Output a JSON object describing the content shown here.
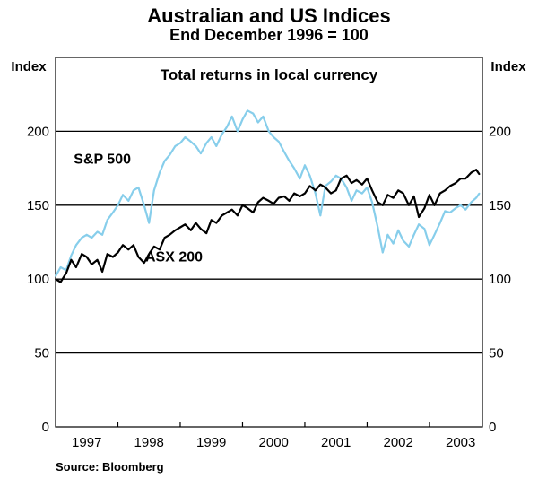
{
  "chart_data": {
    "type": "line",
    "title": "Australian and US Indices",
    "subtitle": "End December 1996 = 100",
    "panel_title": "Total returns in local currency",
    "ylabel_left": "Index",
    "ylabel_right": "Index",
    "ylim": [
      0,
      250
    ],
    "xlim": [
      1997.0,
      2003.85
    ],
    "y_ticks": [
      0,
      50,
      100,
      150,
      200
    ],
    "y_tick_labels": [
      "0",
      "50",
      "100",
      "150",
      "200"
    ],
    "x_tick_labels": [
      "1997",
      "1998",
      "1999",
      "2000",
      "2001",
      "2002",
      "2003"
    ],
    "grid": true,
    "source": "Source: Bloomberg",
    "series": [
      {
        "name": "S&P 500",
        "color": "#87CEEB",
        "x": [
          1997.0,
          1997.08,
          1997.17,
          1997.25,
          1997.33,
          1997.42,
          1997.5,
          1997.58,
          1997.67,
          1997.75,
          1997.83,
          1997.92,
          1998.0,
          1998.08,
          1998.17,
          1998.25,
          1998.33,
          1998.42,
          1998.5,
          1998.58,
          1998.67,
          1998.75,
          1998.83,
          1998.92,
          1999.0,
          1999.08,
          1999.17,
          1999.25,
          1999.33,
          1999.42,
          1999.5,
          1999.58,
          1999.67,
          1999.75,
          1999.83,
          1999.92,
          2000.0,
          2000.08,
          2000.17,
          2000.25,
          2000.33,
          2000.42,
          2000.5,
          2000.58,
          2000.67,
          2000.75,
          2000.83,
          2000.92,
          2001.0,
          2001.08,
          2001.17,
          2001.25,
          2001.33,
          2001.42,
          2001.5,
          2001.58,
          2001.67,
          2001.75,
          2001.83,
          2001.92,
          2002.0,
          2002.08,
          2002.17,
          2002.25,
          2002.33,
          2002.42,
          2002.5,
          2002.58,
          2002.67,
          2002.75,
          2002.83,
          2002.92,
          2003.0,
          2003.08,
          2003.17,
          2003.25,
          2003.33,
          2003.42,
          2003.5,
          2003.58,
          2003.67,
          2003.75,
          2003.8
        ],
        "values": [
          102,
          108,
          106,
          116,
          123,
          128,
          130,
          128,
          132,
          130,
          140,
          145,
          150,
          157,
          153,
          160,
          162,
          150,
          138,
          160,
          172,
          180,
          184,
          190,
          192,
          196,
          193,
          190,
          185,
          192,
          196,
          190,
          198,
          203,
          210,
          200,
          208,
          214,
          212,
          206,
          210,
          200,
          196,
          193,
          186,
          180,
          175,
          168,
          177,
          170,
          158,
          143,
          163,
          166,
          170,
          168,
          162,
          153,
          160,
          158,
          162,
          152,
          135,
          118,
          130,
          124,
          133,
          126,
          122,
          130,
          137,
          134,
          123,
          130,
          138,
          146,
          145,
          148,
          150,
          147,
          152,
          155,
          158
        ]
      },
      {
        "name": "ASX 200",
        "color": "#000000",
        "x": [
          1997.0,
          1997.08,
          1997.17,
          1997.25,
          1997.33,
          1997.42,
          1997.5,
          1997.58,
          1997.67,
          1997.75,
          1997.83,
          1997.92,
          1998.0,
          1998.08,
          1998.17,
          1998.25,
          1998.33,
          1998.42,
          1998.5,
          1998.58,
          1998.67,
          1998.75,
          1998.83,
          1998.92,
          1999.0,
          1999.08,
          1999.17,
          1999.25,
          1999.33,
          1999.42,
          1999.5,
          1999.58,
          1999.67,
          1999.75,
          1999.83,
          1999.92,
          2000.0,
          2000.08,
          2000.17,
          2000.25,
          2000.33,
          2000.42,
          2000.5,
          2000.58,
          2000.67,
          2000.75,
          2000.83,
          2000.92,
          2001.0,
          2001.08,
          2001.17,
          2001.25,
          2001.33,
          2001.42,
          2001.5,
          2001.58,
          2001.67,
          2001.75,
          2001.83,
          2001.92,
          2002.0,
          2002.08,
          2002.17,
          2002.25,
          2002.33,
          2002.42,
          2002.5,
          2002.58,
          2002.67,
          2002.75,
          2002.83,
          2002.92,
          2003.0,
          2003.08,
          2003.17,
          2003.25,
          2003.33,
          2003.42,
          2003.5,
          2003.58,
          2003.67,
          2003.75,
          2003.8
        ],
        "values": [
          100,
          98,
          104,
          113,
          108,
          117,
          115,
          110,
          113,
          105,
          117,
          115,
          118,
          123,
          120,
          123,
          115,
          111,
          117,
          122,
          120,
          128,
          130,
          133,
          135,
          137,
          133,
          138,
          134,
          131,
          140,
          138,
          143,
          145,
          147,
          143,
          150,
          148,
          145,
          152,
          155,
          153,
          151,
          155,
          156,
          153,
          158,
          156,
          158,
          163,
          160,
          164,
          162,
          158,
          160,
          168,
          170,
          165,
          167,
          164,
          168,
          160,
          152,
          150,
          157,
          155,
          160,
          158,
          150,
          156,
          142,
          148,
          157,
          150,
          158,
          160,
          163,
          165,
          168,
          168,
          172,
          174,
          171
        ]
      }
    ],
    "annotations": [
      {
        "text": "S&P 500",
        "x": 1997.75,
        "y": 178
      },
      {
        "text": "ASX 200",
        "x": 1998.9,
        "y": 112
      }
    ]
  }
}
